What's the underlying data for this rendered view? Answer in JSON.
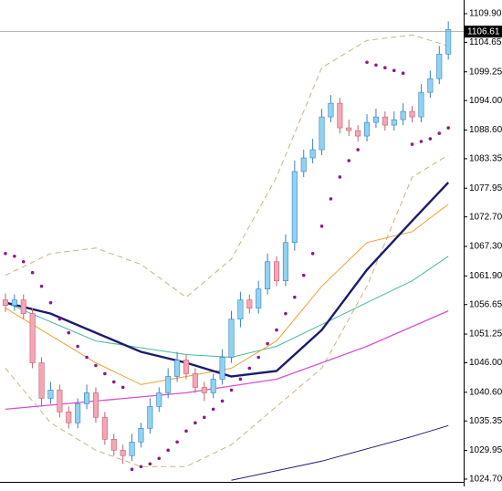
{
  "chart_data": {
    "type": "candlestick",
    "x": [
      0,
      1,
      2,
      3,
      4,
      5,
      6,
      7,
      8,
      9,
      10,
      11,
      12,
      13,
      14,
      15,
      16,
      17,
      18,
      19,
      20,
      21,
      22,
      23,
      24,
      25,
      26,
      27,
      28,
      29,
      30,
      31,
      32,
      33,
      34,
      35,
      36,
      37,
      38,
      39,
      40,
      41,
      42,
      43,
      44,
      45,
      46,
      47,
      48,
      49
    ],
    "open": [
      1057.5,
      1056.5,
      1057.5,
      1055,
      1046,
      1039.5,
      1041,
      1037,
      1035,
      1038.5,
      1040.5,
      1036,
      1032,
      1030,
      1029,
      1031.5,
      1034,
      1038,
      1040.5,
      1043.5,
      1046.5,
      1044,
      1041.5,
      1040.5,
      1043,
      1047,
      1054,
      1057.5,
      1056,
      1059.5,
      1064.5,
      1061,
      1068,
      1081,
      1083.5,
      1085,
      1091,
      1093.5,
      1089,
      1088.5,
      1087.5,
      1090,
      1091,
      1089.5,
      1090.5,
      1092,
      1091,
      1095.5,
      1098,
      1102.5
    ],
    "high": [
      1058.7,
      1058.5,
      1058.5,
      1056,
      1047,
      1042.5,
      1042,
      1038,
      1039.5,
      1042,
      1041.5,
      1037,
      1033,
      1031,
      1033,
      1035,
      1039.5,
      1041.5,
      1045,
      1048,
      1047.5,
      1045,
      1042.5,
      1044,
      1048.5,
      1055.5,
      1059,
      1058.5,
      1061,
      1066,
      1065.5,
      1069.5,
      1083,
      1085,
      1087,
      1092.5,
      1095,
      1094.5,
      1090.5,
      1089.5,
      1091.5,
      1092.5,
      1092,
      1092,
      1093.5,
      1093,
      1097,
      1099.5,
      1104,
      1108.5
    ],
    "low": [
      1055.3,
      1055.5,
      1054,
      1045,
      1038,
      1038.5,
      1036,
      1034,
      1034,
      1037.5,
      1035,
      1031,
      1029,
      1027.5,
      1028,
      1030.5,
      1033,
      1037,
      1039.5,
      1042.5,
      1043,
      1040.5,
      1039,
      1039.5,
      1042,
      1046,
      1052.5,
      1055,
      1055,
      1058.5,
      1060,
      1060,
      1066.5,
      1080,
      1082.5,
      1084,
      1090,
      1088,
      1087.5,
      1086.5,
      1086.5,
      1089,
      1088.5,
      1088.5,
      1089.5,
      1090,
      1090,
      1094.5,
      1097,
      1101.5
    ],
    "close": [
      1056.5,
      1057.5,
      1055,
      1046,
      1039.5,
      1041,
      1037,
      1035,
      1038.5,
      1040.5,
      1036,
      1032,
      1030,
      1029,
      1031.5,
      1034,
      1038,
      1040.5,
      1043.5,
      1046.5,
      1044,
      1041.5,
      1040.5,
      1043,
      1047,
      1054,
      1057.5,
      1056,
      1059.5,
      1064.5,
      1061,
      1068,
      1081,
      1083.5,
      1085,
      1091,
      1093.5,
      1089,
      1088.5,
      1087.5,
      1090,
      1091,
      1089.5,
      1090.5,
      1092,
      1091,
      1095.5,
      1098,
      1102.5,
      1107
    ],
    "up_color": "#8fd3f0",
    "down_color": "#f4a6b4",
    "xlim": [
      -0.6,
      50.7
    ],
    "ylim": [
      1024.2,
      1112.4
    ],
    "yticks": [
      {
        "value": 1109.9,
        "label": "1109.90"
      },
      {
        "value": 1104.65,
        "label": "1104.65"
      },
      {
        "value": 1099.25,
        "label": "1099.25"
      },
      {
        "value": 1094,
        "label": "1094.00"
      },
      {
        "value": 1088.6,
        "label": "1088.60"
      },
      {
        "value": 1083.35,
        "label": "1083.35"
      },
      {
        "value": 1077.95,
        "label": "1077.95"
      },
      {
        "value": 1072.7,
        "label": "1072.70"
      },
      {
        "value": 1067.3,
        "label": "1067.30"
      },
      {
        "value": 1061.9,
        "label": "1061.90"
      },
      {
        "value": 1056.65,
        "label": "1056.65"
      },
      {
        "value": 1051.25,
        "label": "1051.25"
      },
      {
        "value": 1046,
        "label": "1046.00"
      },
      {
        "value": 1040.6,
        "label": "1040.60"
      },
      {
        "value": 1035.35,
        "label": "1035.35"
      },
      {
        "value": 1029.95,
        "label": "1029.95"
      },
      {
        "value": 1024.7,
        "label": "1024.70"
      }
    ],
    "current_price": {
      "value": 1106.61,
      "label": "1106.61"
    },
    "lines": [
      {
        "color": "#c8b47a",
        "width": 1,
        "dash": true,
        "x": [
          0,
          5,
          10,
          15,
          20,
          25,
          30,
          35,
          40,
          45,
          49
        ],
        "values": [
          1062,
          1066,
          1067,
          1064,
          1058,
          1065,
          1080,
          1100,
          1105,
          1106,
          1104
        ]
      },
      {
        "color": "#c8b47a",
        "width": 1,
        "dash": true,
        "x": [
          0,
          5,
          10,
          15,
          20,
          25,
          30,
          35,
          40,
          45,
          49
        ],
        "values": [
          1045,
          1035,
          1030,
          1027,
          1027,
          1031,
          1038,
          1045,
          1060,
          1080,
          1084
        ]
      },
      {
        "color": "#d84fd0",
        "width": 1.3,
        "dash": false,
        "x": [
          0,
          10,
          20,
          30,
          40,
          49
        ],
        "values": [
          1037.5,
          1039,
          1040.5,
          1043,
          1049,
          1055.5
        ]
      },
      {
        "color": "#4bb8a0",
        "width": 1,
        "dash": false,
        "x": [
          0,
          10,
          20,
          25,
          30,
          35,
          40,
          45,
          49
        ],
        "values": [
          1057,
          1050,
          1047.5,
          1047,
          1049,
          1053,
          1057,
          1061,
          1065.5
        ]
      },
      {
        "color": "#f0a030",
        "width": 1,
        "dash": false,
        "x": [
          0,
          10,
          15,
          20,
          25,
          30,
          35,
          40,
          45,
          49
        ],
        "values": [
          1056,
          1046,
          1042,
          1043.5,
          1045,
          1050,
          1060,
          1068,
          1070,
          1075
        ]
      },
      {
        "color": "#1b1b6e",
        "width": 2.4,
        "dash": false,
        "x": [
          0,
          5,
          10,
          15,
          20,
          25,
          30,
          35,
          40,
          45,
          49
        ],
        "values": [
          1057,
          1055,
          1051.5,
          1048,
          1046,
          1043.5,
          1044.5,
          1052,
          1063,
          1072,
          1079
        ]
      },
      {
        "color": "#1b1b6e",
        "width": 1,
        "dash": false,
        "x": [
          25,
          35,
          45,
          49
        ],
        "values": [
          1024.5,
          1028,
          1032.5,
          1034.5
        ]
      }
    ],
    "sar": {
      "color": "#8a1a8a",
      "values": [
        1066,
        1065.5,
        1064.5,
        1062.5,
        1060,
        1057,
        1054,
        1051.5,
        1049,
        1047,
        1045.5,
        1044,
        1042.5,
        1041.5,
        1026.5,
        1027,
        1027.5,
        1028.5,
        1030,
        1031.5,
        1033.5,
        1035,
        1036,
        1037.5,
        1039,
        1041,
        1043,
        1045,
        1047,
        1049.5,
        1052,
        1055,
        1058,
        1062,
        1066,
        1071,
        1076,
        1080,
        1083,
        1085,
        1101,
        1100.5,
        1100,
        1099.5,
        1099,
        1086,
        1086.5,
        1087,
        1088,
        1089
      ]
    }
  }
}
